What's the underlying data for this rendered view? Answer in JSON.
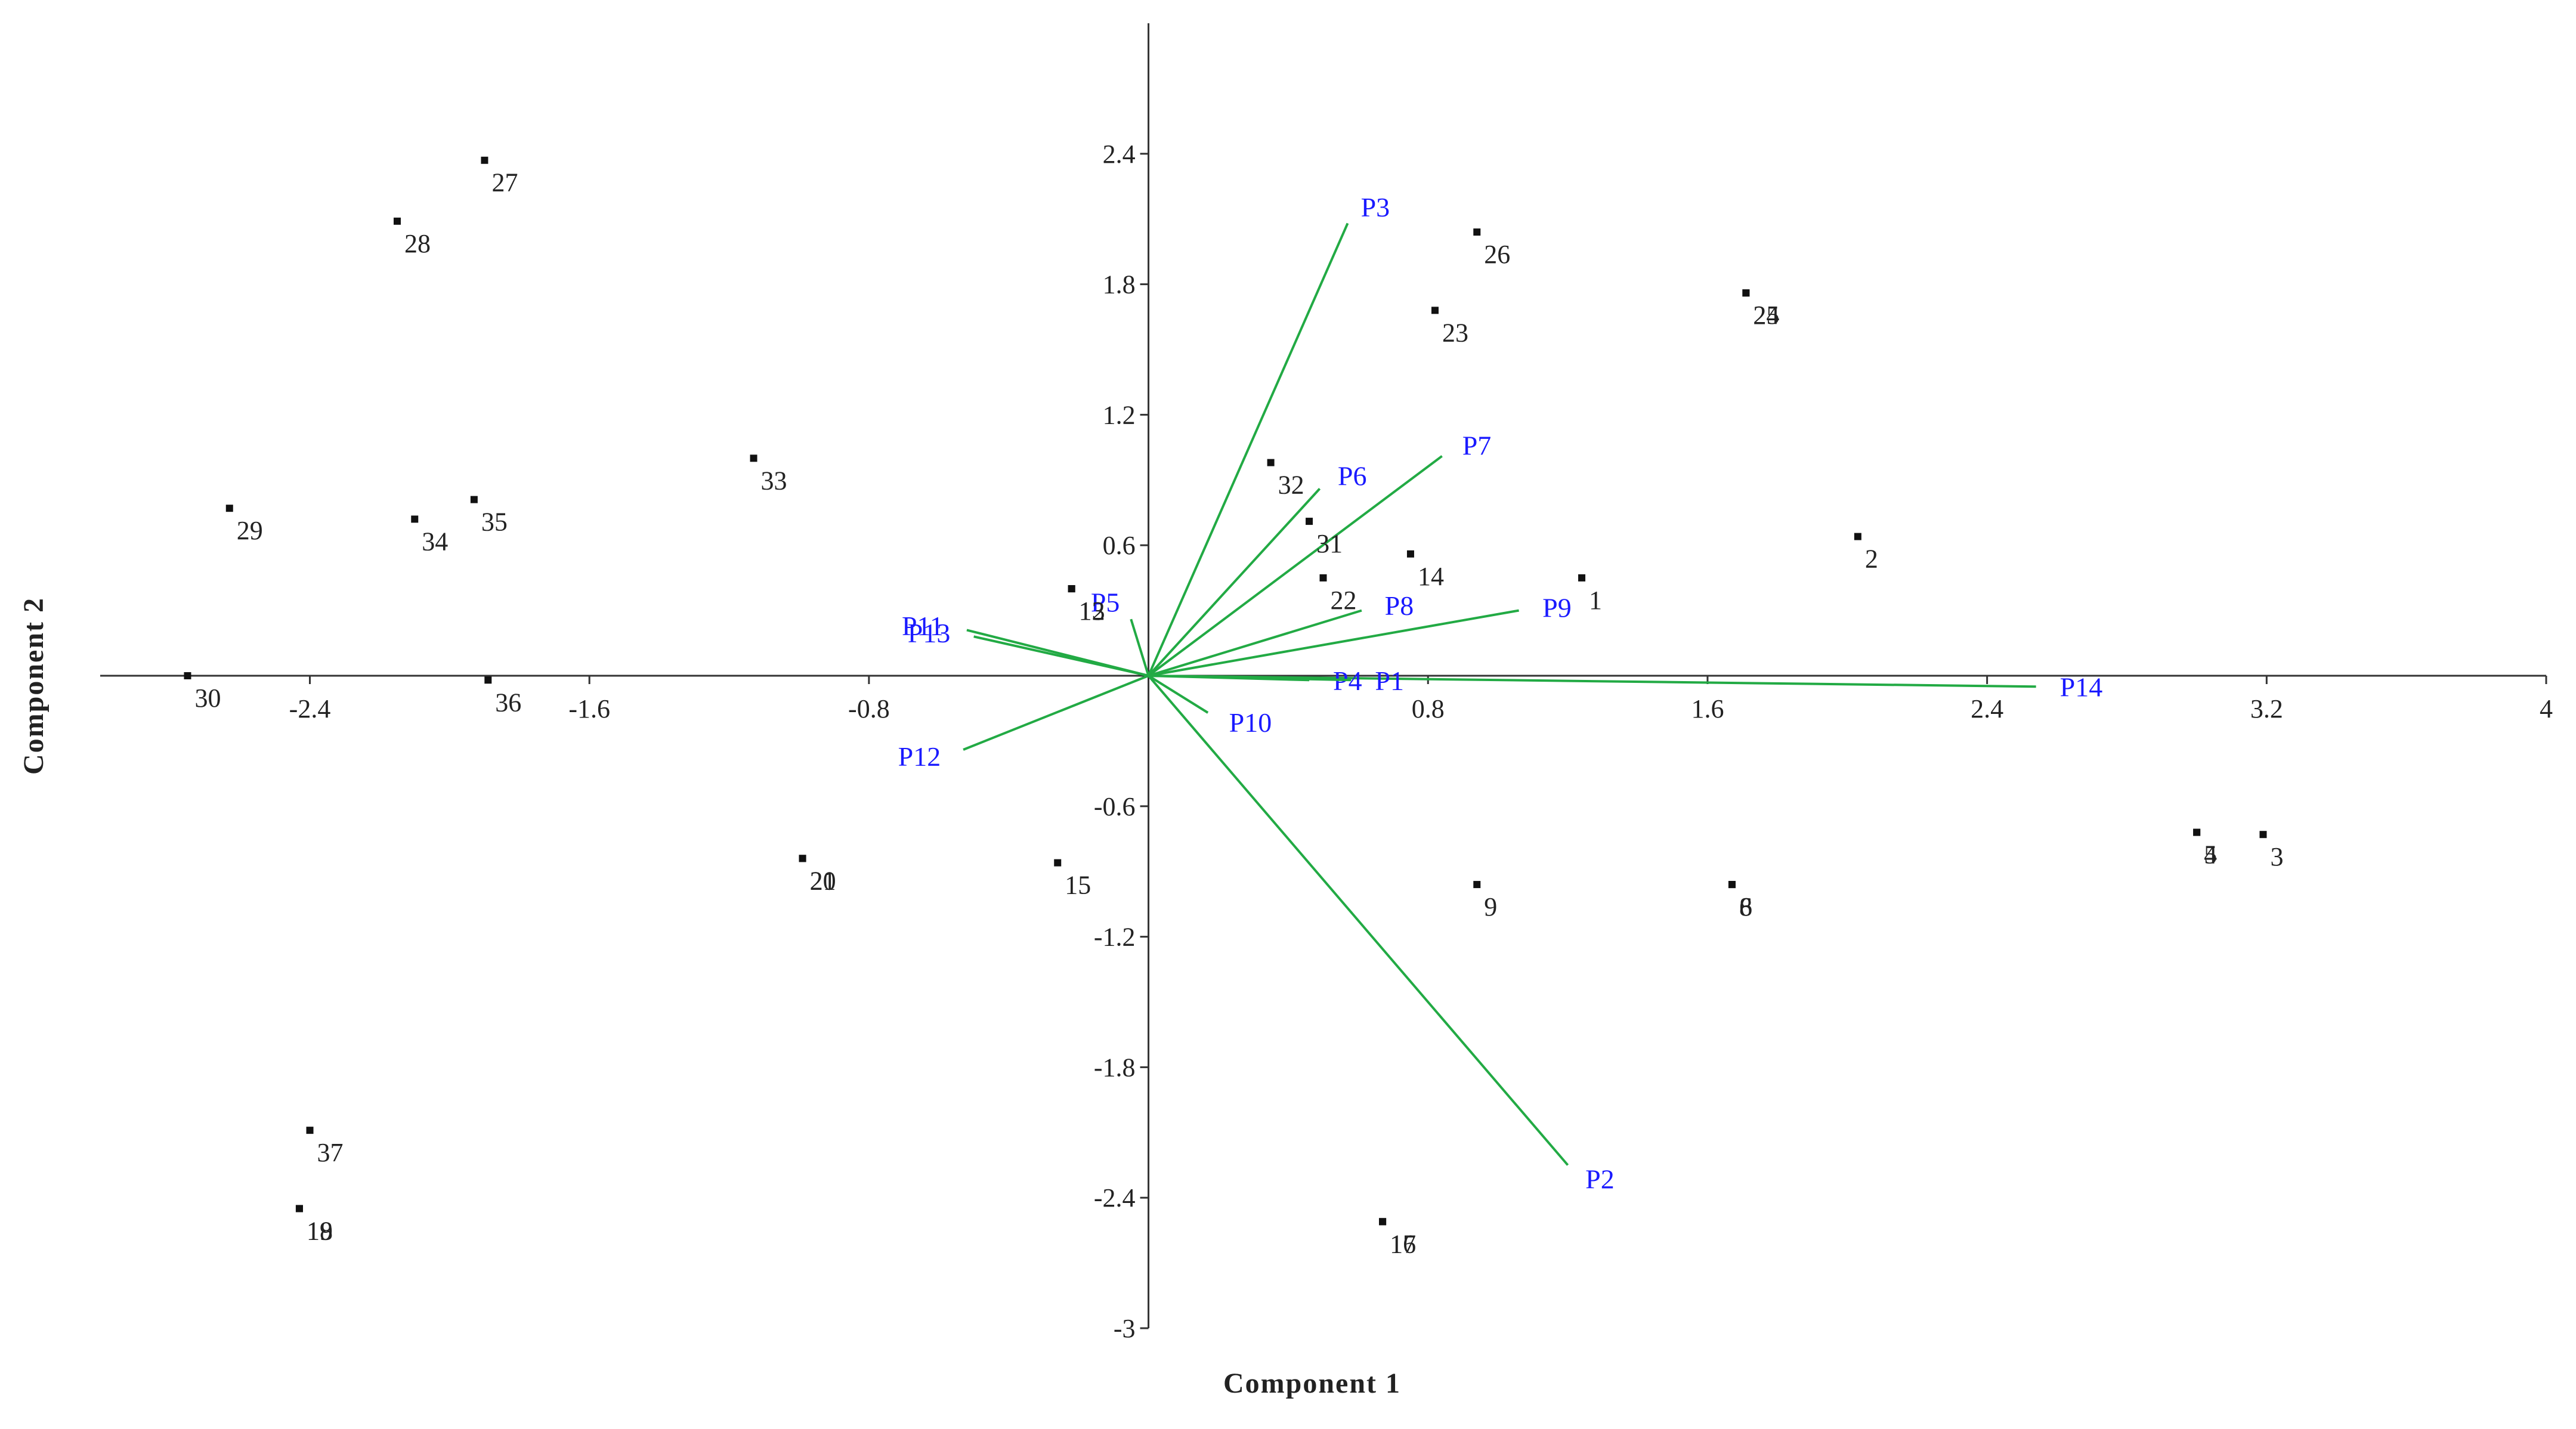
{
  "chart_data": {
    "type": "biplot",
    "x_label": "Component 1",
    "y_label": "Component 2",
    "xlim": [
      -3,
      4
    ],
    "ylim": [
      -3,
      3
    ],
    "xticks": [
      -2.4,
      -1.6,
      -0.8,
      0.8,
      1.6,
      2.4,
      3.2,
      4
    ],
    "yticks": [
      -3,
      -2.4,
      -1.8,
      -1.2,
      -0.6,
      0.6,
      1.2,
      1.8,
      2.4
    ],
    "points": {
      "color": "#111111",
      "labels": [
        "27",
        "28",
        "33",
        "29",
        "34",
        "35",
        "30",
        "36",
        "12",
        "13",
        "20",
        "21",
        "15",
        "37",
        "18",
        "19",
        "32",
        "31",
        "22",
        "14",
        "26",
        "23",
        "24",
        "25",
        "1",
        "2",
        "9",
        "6",
        "8",
        "4",
        "5",
        "3",
        "16",
        "17"
      ],
      "x": [
        -1.9,
        -2.15,
        -1.13,
        -2.63,
        -2.1,
        -1.93,
        -2.75,
        -1.89,
        -0.22,
        -0.22,
        -0.99,
        -0.99,
        -0.26,
        -2.4,
        -2.43,
        -2.43,
        0.35,
        0.46,
        0.5,
        0.75,
        0.94,
        0.82,
        1.71,
        1.71,
        1.24,
        2.03,
        0.94,
        1.67,
        1.67,
        3.0,
        3.0,
        3.19,
        0.67,
        0.67
      ],
      "y": [
        2.37,
        2.09,
        1.0,
        0.77,
        0.72,
        0.81,
        0.0,
        -0.02,
        0.4,
        0.4,
        -0.84,
        -0.84,
        -0.86,
        -2.09,
        -2.45,
        -2.45,
        0.98,
        0.71,
        0.45,
        0.56,
        2.04,
        1.68,
        1.76,
        1.76,
        0.45,
        0.64,
        -0.96,
        -0.96,
        -0.96,
        -0.72,
        -0.72,
        -0.73,
        -2.51,
        -2.51
      ]
    },
    "vectors": {
      "color": "#22aa44",
      "label_color": "#1a1aff",
      "labels": [
        "P3",
        "P7",
        "P6",
        "P8",
        "P9",
        "P14",
        "P2",
        "P10",
        "P5",
        "P11",
        "P13",
        "P12",
        "P4",
        "P1"
      ],
      "x": [
        0.57,
        0.84,
        0.49,
        0.61,
        1.06,
        2.54,
        1.2,
        0.17,
        -0.05,
        -0.52,
        -0.5,
        -0.53,
        0.46,
        0.58
      ],
      "y": [
        2.08,
        1.01,
        0.86,
        0.3,
        0.3,
        -0.05,
        -2.25,
        -0.17,
        0.26,
        0.21,
        0.18,
        -0.34,
        -0.02,
        -0.02
      ]
    }
  }
}
